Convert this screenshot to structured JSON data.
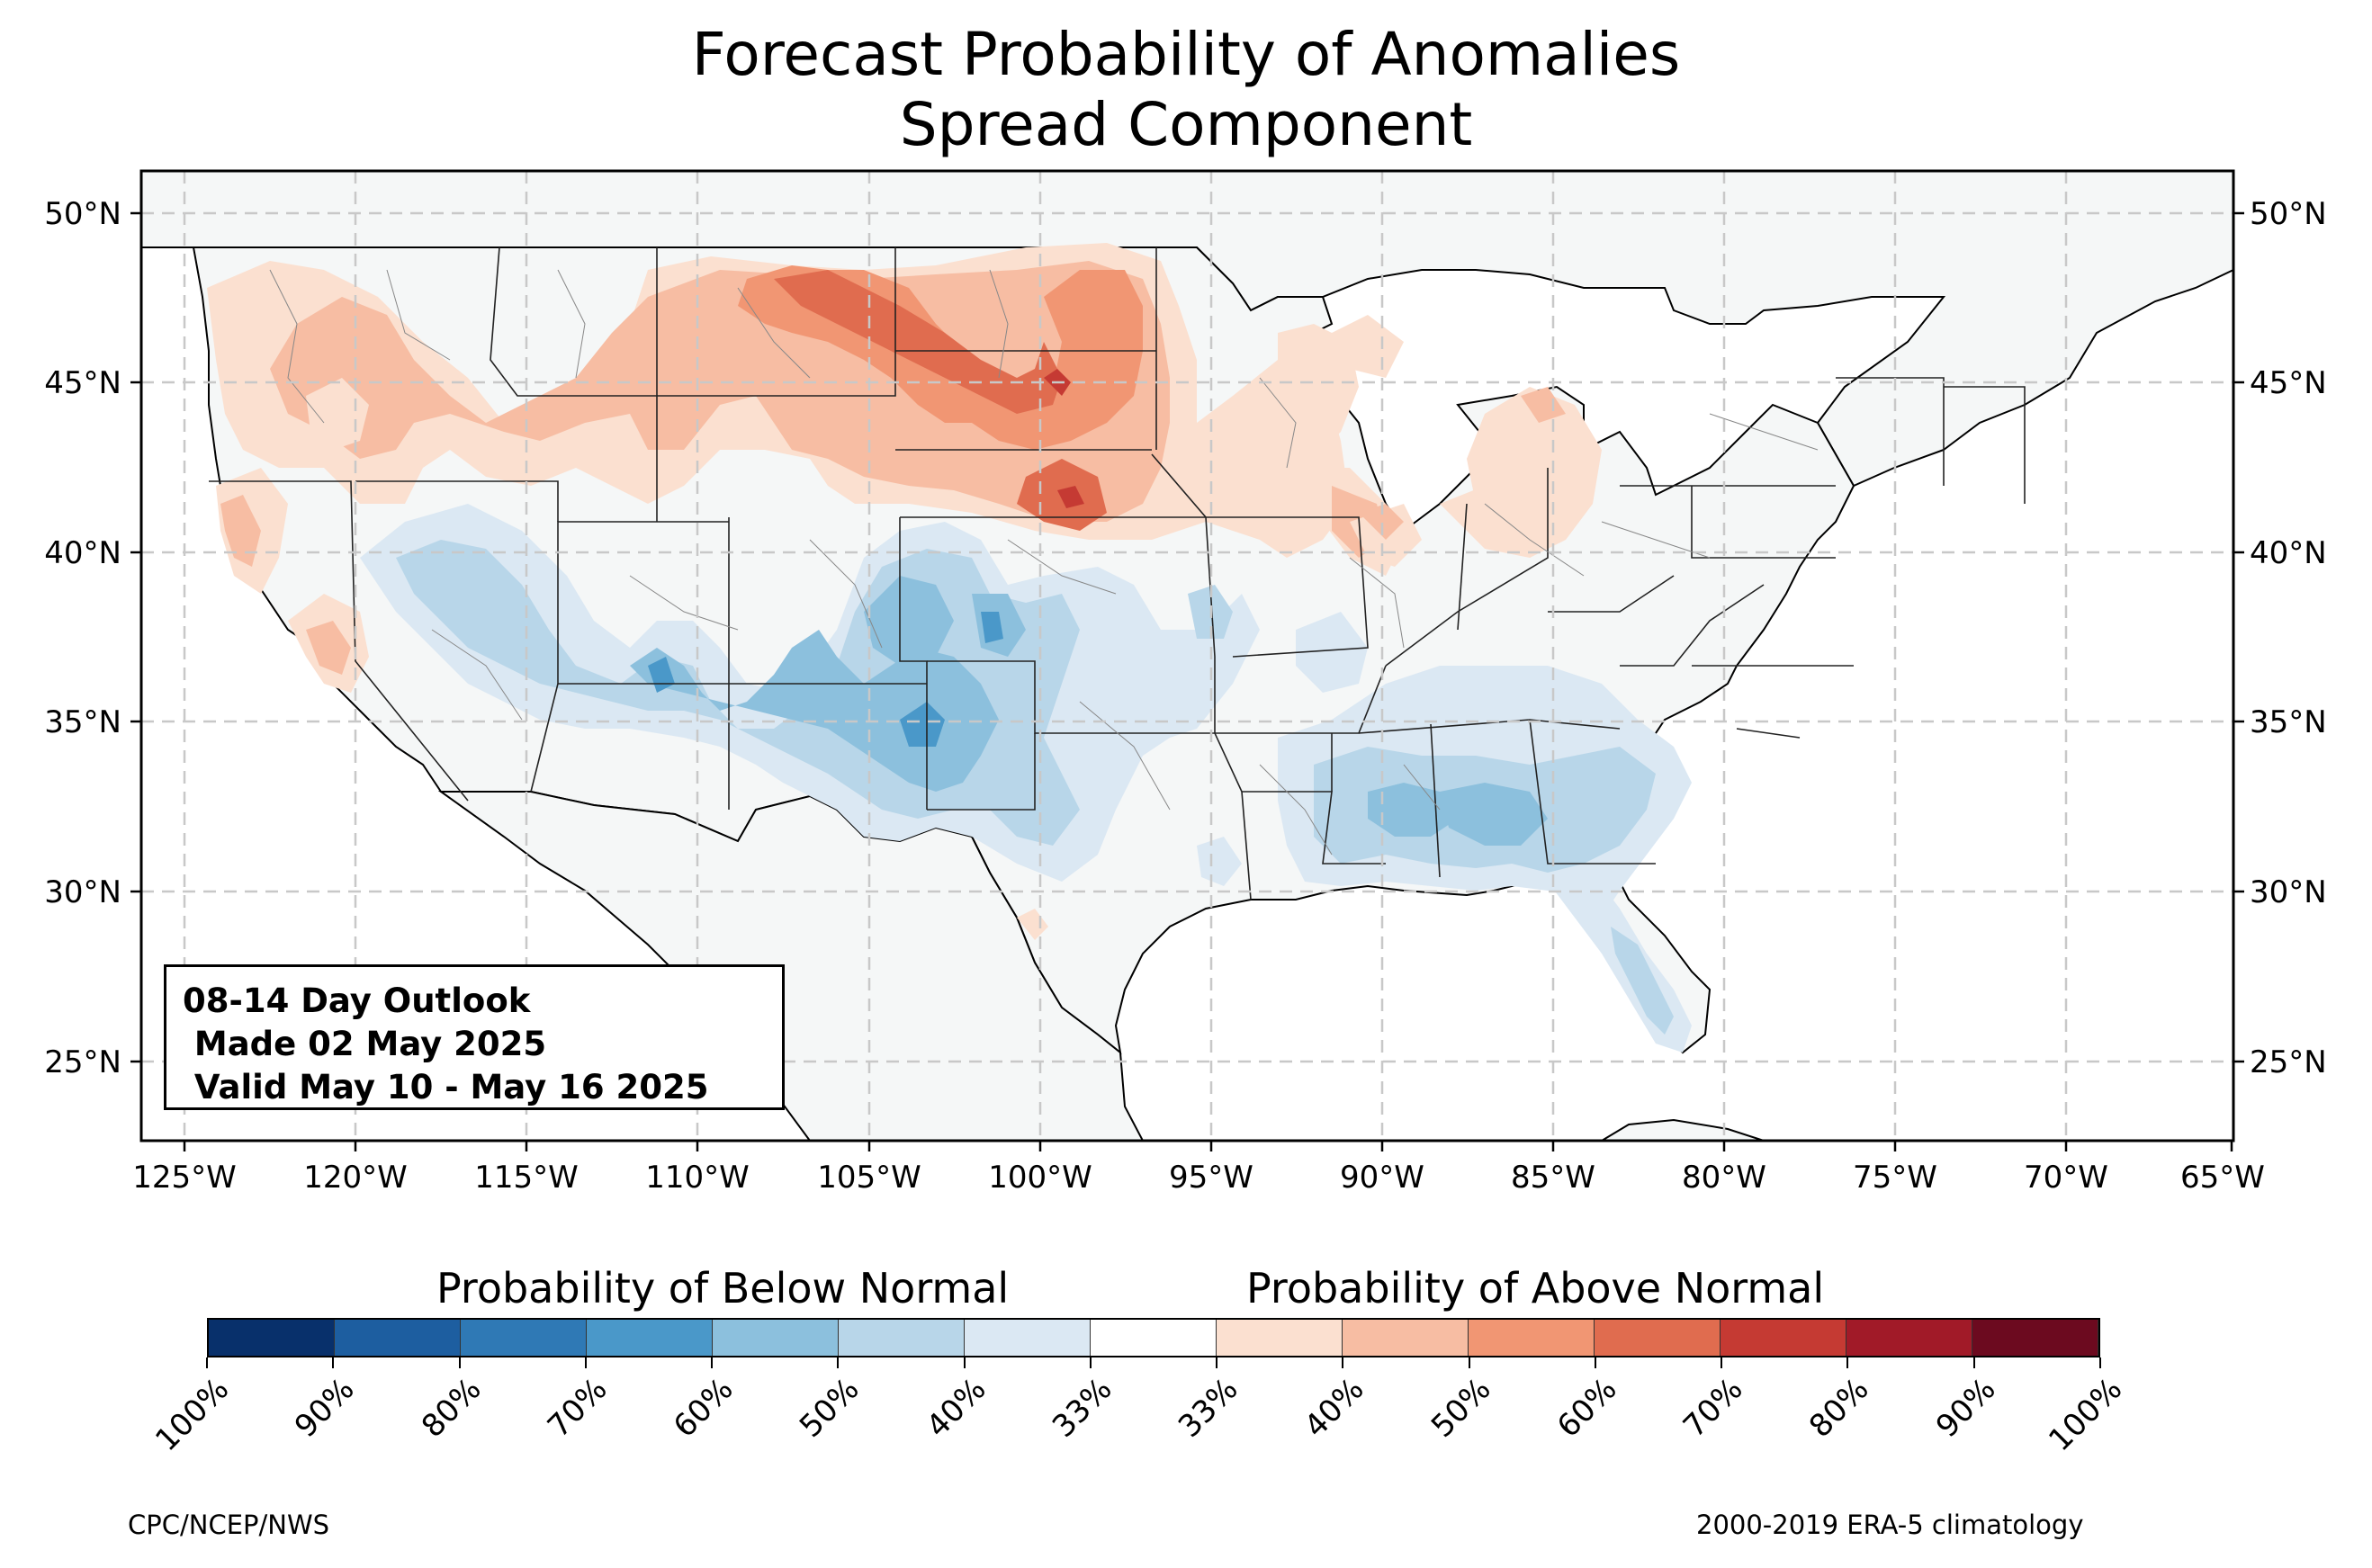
{
  "title_line1": "Forecast Probability of Anomalies",
  "title_line2": "Spread Component",
  "info_box": {
    "line1": "08-14 Day Outlook",
    "line2": " Made 02 May 2025",
    "line3": " Valid May 10 - May 16 2025"
  },
  "axes": {
    "lon_ticks": [
      "125°W",
      "120°W",
      "115°W",
      "110°W",
      "105°W",
      "100°W",
      "95°W",
      "90°W",
      "85°W",
      "80°W",
      "75°W",
      "70°W",
      "65°W"
    ],
    "lat_ticks": [
      "50°N",
      "45°N",
      "40°N",
      "35°N",
      "30°N",
      "25°N"
    ],
    "lon_range": [
      -126.3,
      -65.0
    ],
    "lat_range": [
      22.8,
      51.2
    ],
    "grid": "dashed"
  },
  "colorbar": {
    "below_label": "Probability of Below Normal",
    "above_label": "Probability of Above Normal",
    "tick_labels": [
      "100%",
      "90%",
      "80%",
      "70%",
      "60%",
      "50%",
      "40%",
      "33%",
      "33%",
      "40%",
      "50%",
      "60%",
      "70%",
      "80%",
      "90%",
      "100%"
    ],
    "colors": [
      "#08306b",
      "#1d5ea0",
      "#2f79b5",
      "#4a98c9",
      "#8cc0dd",
      "#b8d6e9",
      "#dbe8f3",
      "#ffffff",
      "#fbe0d0",
      "#f7bda3",
      "#f19673",
      "#e06c4f",
      "#c53a33",
      "#a11a28",
      "#6c0a1f"
    ]
  },
  "regions": [
    {
      "name": "Northern Plains above-normal core",
      "type": "above",
      "level": "60%"
    },
    {
      "name": "Northern Rockies above-normal",
      "type": "above",
      "level": "50%"
    },
    {
      "name": "Pacific Northwest above-normal",
      "type": "above",
      "level": "40%"
    },
    {
      "name": "California coast above-normal",
      "type": "above",
      "level": "50%"
    },
    {
      "name": "Great Lakes / Midwest above-normal",
      "type": "above",
      "level": "40%"
    },
    {
      "name": "Southwest below-normal",
      "type": "below",
      "level": "50%"
    },
    {
      "name": "Southern Plains below-normal",
      "type": "below",
      "level": "60%"
    },
    {
      "name": "Gulf Coast / Southeast below-normal",
      "type": "below",
      "level": "50%"
    },
    {
      "name": "Florida peninsula below-normal",
      "type": "below",
      "level": "40%"
    }
  ],
  "credit": "CPC/NCEP/NWS",
  "climatology": "2000-2019 ERA-5 climatology"
}
